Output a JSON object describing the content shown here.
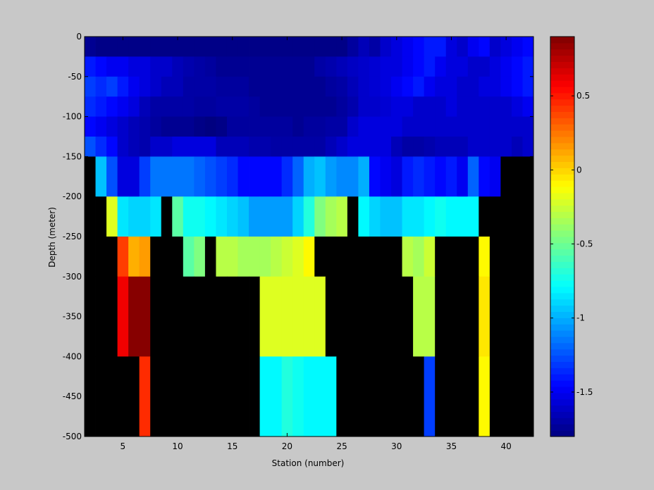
{
  "chart_data": {
    "type": "heatmap",
    "xlabel": "Station (number)",
    "ylabel": "Depth (meter)",
    "xlim": [
      1.5,
      42.5
    ],
    "ylim": [
      -500,
      0
    ],
    "x_ticks": [
      5,
      10,
      15,
      20,
      25,
      30,
      35,
      40
    ],
    "y_ticks": [
      0,
      -50,
      -100,
      -150,
      -200,
      -250,
      -300,
      -350,
      -400,
      -450,
      -500
    ],
    "stations": [
      2,
      3,
      4,
      5,
      6,
      7,
      8,
      9,
      10,
      11,
      12,
      13,
      14,
      15,
      16,
      17,
      18,
      19,
      20,
      21,
      22,
      23,
      24,
      25,
      26,
      27,
      28,
      29,
      30,
      31,
      32,
      33,
      34,
      35,
      36,
      37,
      38,
      39,
      40,
      41,
      42
    ],
    "depth_top": [
      0,
      -25,
      -50,
      -75,
      -100,
      -125,
      -150,
      -200,
      -250,
      -300,
      -400
    ],
    "depth_bottom": [
      -25,
      -50,
      -75,
      -100,
      -125,
      -150,
      -200,
      -250,
      -300,
      -400,
      -500
    ],
    "values": [
      [
        -1.75,
        -1.78,
        -1.78,
        -1.78,
        -1.78,
        -1.78,
        -1.78,
        -1.78,
        -1.78,
        -1.78,
        -1.78,
        -1.78,
        -1.78,
        -1.78,
        -1.78,
        -1.78,
        -1.78,
        -1.78,
        -1.78,
        -1.78,
        -1.78,
        -1.78,
        -1.78,
        -1.78,
        -1.72,
        -1.65,
        -1.7,
        -1.6,
        -1.55,
        -1.5,
        -1.45,
        -1.4,
        -1.4,
        -1.55,
        -1.6,
        -1.5,
        -1.45,
        -1.6,
        -1.55,
        -1.5,
        -1.45
      ],
      [
        -1.4,
        -1.45,
        -1.5,
        -1.5,
        -1.55,
        -1.55,
        -1.6,
        -1.6,
        -1.65,
        -1.68,
        -1.7,
        -1.72,
        -1.75,
        -1.75,
        -1.75,
        -1.75,
        -1.75,
        -1.75,
        -1.75,
        -1.75,
        -1.75,
        -1.7,
        -1.68,
        -1.65,
        -1.62,
        -1.6,
        -1.58,
        -1.55,
        -1.55,
        -1.5,
        -1.45,
        -1.4,
        -1.5,
        -1.55,
        -1.55,
        -1.6,
        -1.6,
        -1.55,
        -1.5,
        -1.45,
        -1.4
      ],
      [
        -1.3,
        -1.35,
        -1.3,
        -1.4,
        -1.5,
        -1.55,
        -1.6,
        -1.65,
        -1.65,
        -1.7,
        -1.7,
        -1.7,
        -1.72,
        -1.72,
        -1.72,
        -1.75,
        -1.75,
        -1.75,
        -1.75,
        -1.75,
        -1.75,
        -1.75,
        -1.72,
        -1.7,
        -1.65,
        -1.6,
        -1.58,
        -1.55,
        -1.5,
        -1.45,
        -1.4,
        -1.5,
        -1.55,
        -1.55,
        -1.6,
        -1.6,
        -1.55,
        -1.55,
        -1.5,
        -1.45,
        -1.4
      ],
      [
        -1.35,
        -1.4,
        -1.45,
        -1.5,
        -1.55,
        -1.65,
        -1.7,
        -1.7,
        -1.7,
        -1.7,
        -1.72,
        -1.72,
        -1.7,
        -1.7,
        -1.7,
        -1.72,
        -1.75,
        -1.75,
        -1.75,
        -1.75,
        -1.75,
        -1.75,
        -1.75,
        -1.72,
        -1.68,
        -1.6,
        -1.6,
        -1.58,
        -1.55,
        -1.55,
        -1.6,
        -1.6,
        -1.6,
        -1.55,
        -1.6,
        -1.6,
        -1.6,
        -1.6,
        -1.6,
        -1.55,
        -1.5
      ],
      [
        -1.45,
        -1.5,
        -1.55,
        -1.6,
        -1.65,
        -1.68,
        -1.72,
        -1.75,
        -1.75,
        -1.75,
        -1.78,
        -1.8,
        -1.78,
        -1.72,
        -1.72,
        -1.72,
        -1.72,
        -1.72,
        -1.72,
        -1.75,
        -1.72,
        -1.72,
        -1.7,
        -1.7,
        -1.6,
        -1.55,
        -1.55,
        -1.55,
        -1.55,
        -1.6,
        -1.6,
        -1.6,
        -1.6,
        -1.6,
        -1.6,
        -1.6,
        -1.6,
        -1.6,
        -1.6,
        -1.6,
        -1.6
      ],
      [
        -1.25,
        -1.35,
        -1.45,
        -1.6,
        -1.65,
        -1.68,
        -1.6,
        -1.6,
        -1.55,
        -1.55,
        -1.55,
        -1.55,
        -1.65,
        -1.65,
        -1.65,
        -1.68,
        -1.68,
        -1.7,
        -1.7,
        -1.7,
        -1.7,
        -1.7,
        -1.65,
        -1.6,
        -1.55,
        -1.55,
        -1.55,
        -1.55,
        -1.65,
        -1.7,
        -1.7,
        -1.68,
        -1.65,
        -1.65,
        -1.65,
        -1.6,
        -1.6,
        -1.6,
        -1.6,
        -1.65,
        -1.6
      ],
      [
        null,
        -0.95,
        -1.25,
        -1.55,
        -1.55,
        -1.3,
        -1.15,
        -1.15,
        -1.15,
        -1.15,
        -1.2,
        -1.25,
        -1.3,
        -1.35,
        -1.45,
        -1.45,
        -1.45,
        -1.45,
        -1.35,
        -1.2,
        -1.0,
        -0.95,
        -1.05,
        -1.1,
        -1.1,
        -1.0,
        -1.45,
        -1.5,
        -1.55,
        -1.4,
        -1.35,
        -1.4,
        -1.45,
        -1.4,
        -1.5,
        -1.2,
        -1.45,
        -1.5,
        null,
        null,
        null
      ],
      [
        null,
        null,
        -0.2,
        -0.85,
        -0.9,
        -0.9,
        -0.85,
        null,
        -0.55,
        -0.75,
        -0.75,
        -0.8,
        -0.85,
        -0.9,
        -0.95,
        -1.05,
        -1.05,
        -1.05,
        -1.05,
        -0.9,
        -0.7,
        -0.45,
        -0.35,
        -0.3,
        null,
        -0.8,
        -0.9,
        -0.95,
        -0.95,
        -0.85,
        -0.85,
        -0.8,
        -0.75,
        -0.8,
        -0.8,
        -0.8,
        null,
        null,
        null,
        null,
        null
      ],
      [
        null,
        null,
        null,
        0.4,
        0.1,
        0.15,
        null,
        null,
        null,
        -0.55,
        -0.45,
        null,
        -0.3,
        -0.3,
        -0.35,
        -0.35,
        -0.35,
        -0.3,
        -0.25,
        -0.2,
        -0.1,
        null,
        null,
        null,
        null,
        null,
        null,
        null,
        null,
        -0.3,
        -0.35,
        -0.25,
        null,
        null,
        null,
        null,
        -0.1,
        null,
        null,
        null,
        null
      ],
      [
        null,
        null,
        null,
        0.6,
        0.88,
        0.88,
        null,
        null,
        null,
        null,
        null,
        null,
        null,
        null,
        null,
        null,
        -0.2,
        -0.2,
        -0.2,
        -0.2,
        -0.2,
        -0.2,
        null,
        null,
        null,
        null,
        null,
        null,
        null,
        null,
        -0.3,
        -0.3,
        null,
        null,
        null,
        null,
        -0.05,
        null,
        null,
        null,
        null
      ],
      [
        null,
        null,
        null,
        null,
        null,
        0.45,
        null,
        null,
        null,
        null,
        null,
        null,
        null,
        null,
        null,
        null,
        -0.8,
        -0.8,
        -0.7,
        -0.75,
        -0.8,
        -0.8,
        -0.8,
        null,
        null,
        null,
        null,
        null,
        null,
        null,
        null,
        -1.3,
        null,
        null,
        null,
        null,
        -0.1,
        null,
        null,
        null,
        null
      ]
    ],
    "colorbar": {
      "range": [
        -1.8,
        0.9
      ],
      "ticks": [
        0.5,
        0,
        -0.5,
        -1,
        -1.5
      ],
      "tick_labels": [
        "0.5",
        "0",
        "-0.5",
        "-1",
        "-1.5"
      ]
    },
    "nodata_color": "#000000"
  }
}
